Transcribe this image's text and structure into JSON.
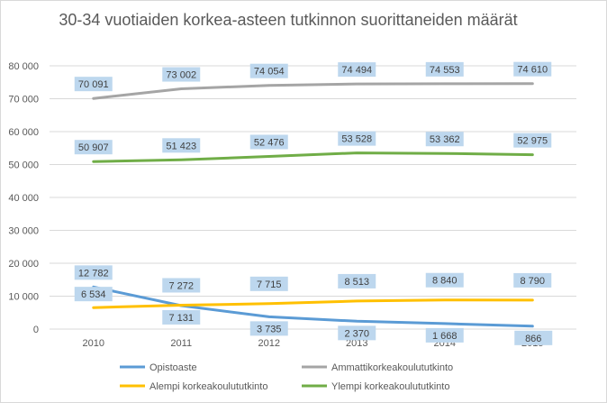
{
  "chart_data": {
    "type": "line",
    "title": "30-34 vuotiaiden korkea-asteen tutkinnon suorittaneiden määrät",
    "categories": [
      "2010",
      "2011",
      "2012",
      "2013",
      "2014",
      "2015"
    ],
    "ylim": [
      0,
      80000
    ],
    "yticks": [
      0,
      10000,
      20000,
      30000,
      40000,
      50000,
      60000,
      70000,
      80000
    ],
    "ytick_labels": [
      "0",
      "10 000",
      "20 000",
      "30 000",
      "40 000",
      "50 000",
      "60 000",
      "70 000",
      "80 000"
    ],
    "grid": true,
    "legend_position": "bottom",
    "series": [
      {
        "name": "Opistoaste",
        "color": "#5b9bd5",
        "values": [
          12782,
          7131,
          3735,
          2370,
          1668,
          866
        ],
        "labels": [
          "12 782",
          "7 131",
          "3 735",
          "2 370",
          "1 668",
          "866"
        ]
      },
      {
        "name": "Ammattikorkeakoulututkinto",
        "color": "#a5a5a5",
        "values": [
          70091,
          73002,
          74054,
          74494,
          74553,
          74610
        ],
        "labels": [
          "70 091",
          "73 002",
          "74 054",
          "74 494",
          "74 553",
          "74 610"
        ]
      },
      {
        "name": "Alempi korkeakoulututkinto",
        "color": "#ffc000",
        "values": [
          6534,
          7272,
          7715,
          8513,
          8840,
          8790
        ],
        "labels": [
          "6 534",
          "7 272",
          "7 715",
          "8 513",
          "8 840",
          "8 790"
        ]
      },
      {
        "name": "Ylempi korkeakoulututkinto",
        "color": "#70ad47",
        "values": [
          50907,
          51423,
          52476,
          53528,
          53362,
          52975
        ],
        "labels": [
          "50 907",
          "51 423",
          "52 476",
          "53 528",
          "53 362",
          "52 975"
        ]
      }
    ]
  }
}
